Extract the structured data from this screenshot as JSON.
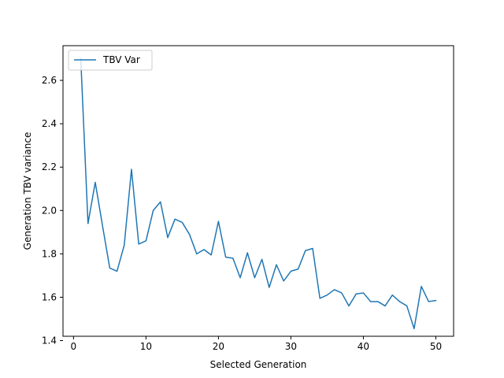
{
  "chart_data": {
    "type": "line",
    "title": "",
    "xlabel": "Selected Generation",
    "ylabel": "Generation TBV variance",
    "xlim": [
      -1.45,
      52.45
    ],
    "ylim": [
      1.42,
      2.76
    ],
    "xticks": [
      0,
      10,
      20,
      30,
      40,
      50
    ],
    "yticks": [
      1.4,
      1.6,
      1.8,
      2.0,
      2.2,
      2.4,
      2.6
    ],
    "ytick_labels": [
      "1.4",
      "1.6",
      "1.8",
      "2.0",
      "2.2",
      "2.4",
      "2.6"
    ],
    "grid": false,
    "legend": {
      "position": "top-left"
    },
    "series": [
      {
        "name": "TBV Var",
        "color": "#1f77b4",
        "x": [
          1,
          2,
          3,
          4,
          5,
          6,
          7,
          8,
          9,
          10,
          11,
          12,
          13,
          14,
          15,
          16,
          17,
          18,
          19,
          20,
          21,
          22,
          23,
          24,
          25,
          26,
          27,
          28,
          29,
          30,
          31,
          32,
          33,
          34,
          35,
          36,
          37,
          38,
          39,
          40,
          41,
          42,
          43,
          44,
          45,
          46,
          47,
          48,
          49,
          50
        ],
        "values": [
          2.7,
          1.94,
          2.13,
          1.93,
          1.735,
          1.72,
          1.84,
          2.19,
          1.845,
          1.86,
          2.0,
          2.04,
          1.875,
          1.96,
          1.945,
          1.89,
          1.8,
          1.82,
          1.795,
          1.95,
          1.785,
          1.78,
          1.69,
          1.805,
          1.69,
          1.775,
          1.645,
          1.75,
          1.675,
          1.72,
          1.73,
          1.815,
          1.825,
          1.595,
          1.61,
          1.635,
          1.62,
          1.56,
          1.615,
          1.62,
          1.58,
          1.58,
          1.56,
          1.61,
          1.58,
          1.56,
          1.455,
          1.65,
          1.58,
          1.585
        ]
      }
    ]
  }
}
